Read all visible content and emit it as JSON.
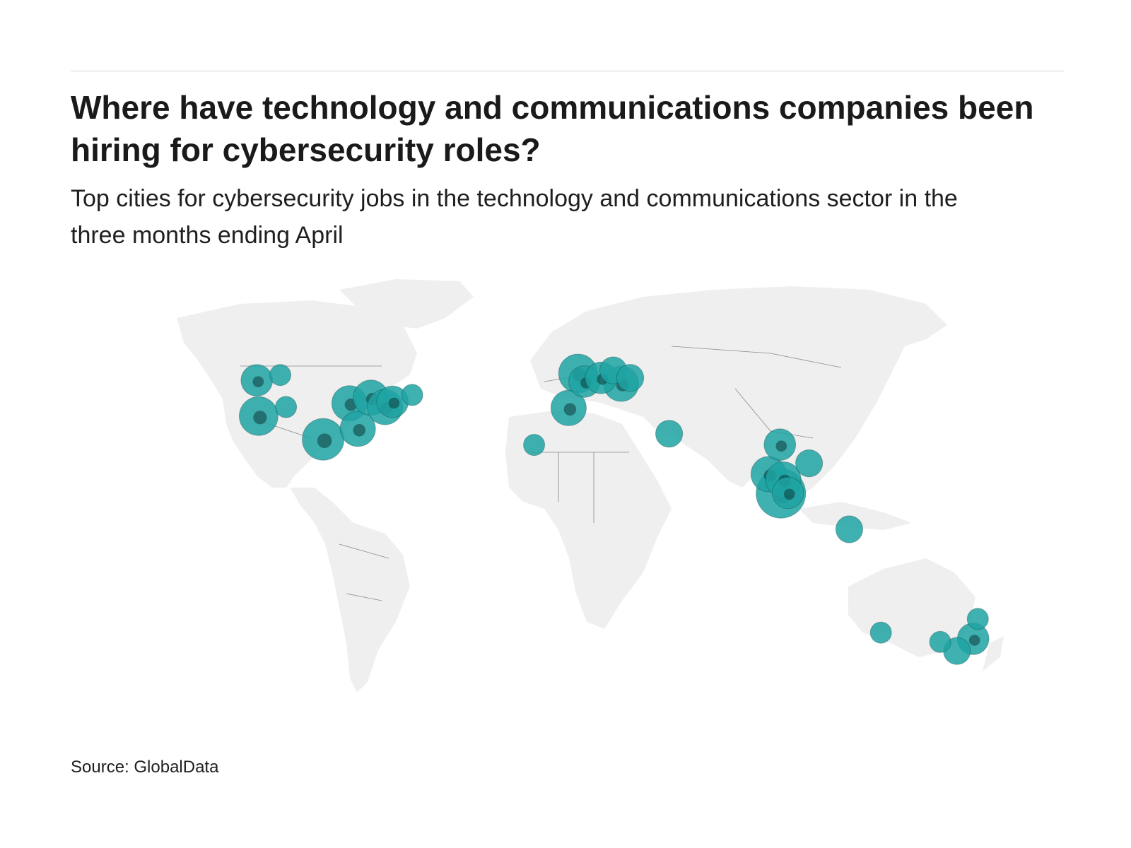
{
  "header": {
    "title": "Where have technology and communications companies been hiring for cybersecurity roles?",
    "subtitle": "Top cities for cybersecurity jobs in the technology and communications sector in the three months ending April"
  },
  "footer": {
    "source": "Source: GlobalData"
  },
  "map": {
    "type": "proportional-symbol world map",
    "land_color": "#efefef",
    "border_color": "#8a8a8a",
    "bubble_color": "#1fa3a3",
    "bubble_dark_color": "#0c3b3b",
    "legend": "none"
  },
  "chart_data": {
    "type": "bubble-map",
    "title": "Where have technology and communications companies been hiring for cybersecurity roles?",
    "subtitle": "Top cities for cybersecurity jobs in the technology and communications sector in the three months ending April",
    "size_meaning": "relative job count (unlabeled)",
    "points": [
      {
        "lon": -123.1,
        "lat": 49.3,
        "size": 3
      },
      {
        "lon": -114.1,
        "lat": 51.0,
        "size": 1
      },
      {
        "lon": -122.4,
        "lat": 37.8,
        "size": 5
      },
      {
        "lon": -111.9,
        "lat": 40.7,
        "size": 1
      },
      {
        "lon": -97.7,
        "lat": 30.3,
        "size": 6
      },
      {
        "lon": -87.6,
        "lat": 41.9,
        "size": 4
      },
      {
        "lon": -84.4,
        "lat": 33.7,
        "size": 4
      },
      {
        "lon": -79.4,
        "lat": 43.7,
        "size": 4
      },
      {
        "lon": -74.0,
        "lat": 40.7,
        "size": 4
      },
      {
        "lon": -71.1,
        "lat": 42.4,
        "size": 3
      },
      {
        "lon": -63.6,
        "lat": 44.6,
        "size": 1
      },
      {
        "lon": -16.9,
        "lat": 28.5,
        "size": 1
      },
      {
        "lon": -0.1,
        "lat": 51.5,
        "size": 5
      },
      {
        "lon": -3.7,
        "lat": 40.4,
        "size": 4
      },
      {
        "lon": 2.4,
        "lat": 48.9,
        "size": 3
      },
      {
        "lon": 8.7,
        "lat": 50.1,
        "size": 3
      },
      {
        "lon": 13.4,
        "lat": 52.5,
        "size": 2
      },
      {
        "lon": 16.4,
        "lat": 48.2,
        "size": 4
      },
      {
        "lon": 19.9,
        "lat": 50.1,
        "size": 2
      },
      {
        "lon": 34.8,
        "lat": 32.1,
        "size": 2
      },
      {
        "lon": 77.2,
        "lat": 28.6,
        "size": 3
      },
      {
        "lon": 72.9,
        "lat": 19.1,
        "size": 4
      },
      {
        "lon": 77.6,
        "lat": 12.9,
        "size": 9
      },
      {
        "lon": 78.5,
        "lat": 17.4,
        "size": 4
      },
      {
        "lon": 80.3,
        "lat": 13.1,
        "size": 3
      },
      {
        "lon": 88.4,
        "lat": 22.6,
        "size": 2
      },
      {
        "lon": 103.8,
        "lat": 1.35,
        "size": 2
      },
      {
        "lon": 115.9,
        "lat": -31.9,
        "size": 1
      },
      {
        "lon": 138.6,
        "lat": -34.9,
        "size": 1
      },
      {
        "lon": 145.0,
        "lat": -37.8,
        "size": 2
      },
      {
        "lon": 151.2,
        "lat": -33.9,
        "size": 3
      },
      {
        "lon": 153.0,
        "lat": -27.5,
        "size": 1
      }
    ]
  }
}
